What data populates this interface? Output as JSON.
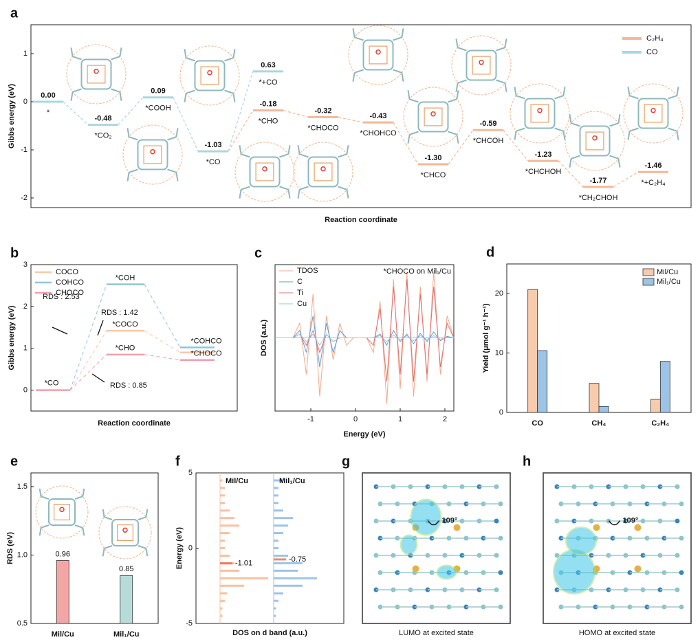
{
  "chart_data": [
    {
      "type": "energy",
      "panel": "a",
      "ylabel": "Gibbs energy (eV)",
      "xlabel": "Reaction coordinate",
      "ylim": [
        -2.2,
        1.6
      ],
      "yticks": [
        -2,
        -1,
        0,
        1
      ],
      "series": [
        {
          "name": "CO",
          "color": "#a8d8dc",
          "labels": [
            "*",
            "*CO₂",
            "*COOH",
            "*CO",
            "*+CO"
          ],
          "values": [
            0,
            -0.48,
            0.09,
            -1.03,
            0.63
          ],
          "value_labels": [
            "0.00",
            "-0.48",
            "0.09",
            "-1.03",
            "0.63"
          ]
        },
        {
          "name": "C₂H₄",
          "color": "#f5b896",
          "labels": [
            "*CHO",
            "*CHOCO",
            "*CHOHCO",
            "*CHCO",
            "*CHCOH",
            "*CHCHOH",
            "*CH₂CHOH",
            "*+C₂H₄"
          ],
          "values": [
            -0.18,
            -0.32,
            -0.43,
            -1.3,
            -0.59,
            -1.23,
            -1.77,
            -1.46
          ],
          "value_labels": [
            "-0.18",
            "-0.32",
            "-0.43",
            "-1.30",
            "-0.59",
            "-1.23",
            "-1.77",
            "-1.46"
          ]
        }
      ]
    },
    {
      "type": "energy-branch",
      "panel": "b",
      "ylabel": "Gibbs energy (eV)",
      "xlabel": "Reaction coordinate",
      "ylim": [
        -0.5,
        3
      ],
      "yticks": [
        0,
        1,
        2,
        3
      ],
      "start": {
        "label": "*CO",
        "value": 0
      },
      "series": [
        {
          "name": "COCO",
          "color": "#f8c9a8",
          "labels": [
            "*COCO",
            null
          ],
          "values": [
            1.42,
            0.9
          ]
        },
        {
          "name": "COHCO",
          "color": "#8fc4dc",
          "labels": [
            "*COH",
            "*COHCO"
          ],
          "values": [
            2.53,
            1.02
          ]
        },
        {
          "name": "CHOCO",
          "color": "#ef9fa8",
          "labels": [
            "*CHO",
            "*CHOCO"
          ],
          "values": [
            0.85,
            0.72
          ]
        }
      ],
      "annotations": [
        "RDS : 2.53",
        "RDS : 1.42",
        "RDS : 0.85"
      ]
    },
    {
      "type": "line",
      "panel": "c",
      "ylabel": "DOS (a.u.)",
      "xlabel": "Energy (eV)",
      "annotation": "*CHOCO on Mil₁/Cu",
      "xlim": [
        -1.8,
        2.2
      ],
      "xticks": [
        -1,
        0,
        1,
        2
      ],
      "ylim": [
        -1,
        1
      ],
      "x": [
        -1.4,
        -1.25,
        -1.1,
        -0.95,
        -0.8,
        -0.65,
        -0.5,
        -0.35,
        -0.2,
        -0.05,
        0.1,
        0.25,
        0.4,
        0.55,
        0.7,
        0.85,
        1.0,
        1.15,
        1.3,
        1.45,
        1.6,
        1.75,
        1.9,
        2.05,
        2.2
      ],
      "series": [
        {
          "name": "TDOS",
          "color": "#f4a98a",
          "values": [
            0,
            0.2,
            -0.5,
            0.6,
            -0.8,
            0.3,
            -0.3,
            0.2,
            -0.1,
            0,
            0,
            0,
            -0.2,
            0.5,
            -0.9,
            0.8,
            -0.7,
            0.9,
            -0.8,
            0.7,
            -0.6,
            0.9,
            -0.5,
            0.3,
            0
          ]
        },
        {
          "name": "C",
          "color": "#5b9bd5",
          "values": [
            0,
            0.1,
            -0.2,
            0.3,
            -0.4,
            0.2,
            -0.2,
            0.1,
            0,
            0,
            0,
            0,
            0,
            0.05,
            -0.1,
            0.1,
            -0.05,
            0.05,
            -0.08,
            0.06,
            -0.05,
            0.08,
            -0.04,
            0.02,
            0
          ]
        },
        {
          "name": "Ti",
          "color": "#e07070",
          "values": [
            0,
            0.05,
            -0.1,
            0.1,
            -0.2,
            0.05,
            -0.05,
            0,
            0,
            0,
            0,
            0,
            -0.1,
            0.4,
            -0.6,
            0.7,
            -0.5,
            0.8,
            -0.6,
            0.6,
            -0.5,
            0.7,
            -0.4,
            0.2,
            0
          ]
        },
        {
          "name": "Cu",
          "color": "#9dc3e6",
          "values": [
            0,
            0.05,
            -0.05,
            0.05,
            -0.1,
            0.05,
            -0.05,
            0,
            0,
            0,
            0,
            0,
            0,
            0.03,
            -0.05,
            0.04,
            -0.03,
            0.03,
            -0.04,
            0.03,
            -0.02,
            0.03,
            -0.02,
            0.01,
            0
          ]
        }
      ]
    },
    {
      "type": "bar",
      "panel": "d",
      "ylabel": "Yield (μmol g⁻¹ h⁻¹)",
      "ylim": [
        0,
        25
      ],
      "yticks": [
        0,
        10,
        20
      ],
      "categories": [
        "CO",
        "CH₄",
        "C₂H₄"
      ],
      "series": [
        {
          "name": "Mil/Cu",
          "color": "#f8cbad",
          "values": [
            20.7,
            4.9,
            2.2
          ]
        },
        {
          "name": "Mil₁/Cu",
          "color": "#9dc3e6",
          "values": [
            10.4,
            1.0,
            8.6
          ]
        }
      ]
    },
    {
      "type": "bar",
      "panel": "e",
      "ylabel": "RDS (eV)",
      "ylim": [
        0.5,
        1.6
      ],
      "yticks": [
        0.5,
        {
          "value": 1,
          "label": "1.0"
        },
        1.5
      ],
      "categories": [
        "Mil/Cu",
        "Mil₁/Cu"
      ],
      "values": [
        0.96,
        0.85
      ],
      "colors": [
        "#f4a6a6",
        "#b7dcd8"
      ]
    },
    {
      "type": "dos",
      "panel": "f",
      "ylabel": "Energy (eV)",
      "xlabel": "DOS on d band (a.u.)",
      "ylim": [
        -5,
        5
      ],
      "yticks": [
        -5,
        0,
        5
      ],
      "y": [
        -4.5,
        -4,
        -3.5,
        -3,
        -2.5,
        -2,
        -1.5,
        -1,
        -0.5,
        0,
        0.5,
        1,
        1.5,
        2,
        2.5,
        3,
        3.5,
        4,
        4.5
      ],
      "series": [
        {
          "name": "Mil/Cu",
          "color": "#f8c0a0",
          "center_color": "#ee7a5a",
          "center": -1.01,
          "values": [
            0.05,
            0.05,
            0.1,
            0.15,
            0.5,
            1.0,
            0.4,
            0.3,
            0.2,
            0.1,
            0.1,
            0.2,
            0.4,
            0.3,
            0.2,
            0.1,
            0.1,
            0.1,
            0.05
          ]
        },
        {
          "name": "Mil₁/Cu",
          "color": "#9dc3e6",
          "center_color": "#ee8a6a",
          "center": -0.75,
          "values": [
            0.05,
            0.05,
            0.1,
            0.2,
            0.6,
            0.9,
            0.5,
            0.6,
            0.3,
            0.1,
            0.1,
            0.2,
            0.3,
            0.4,
            0.2,
            0.1,
            0.1,
            0.1,
            0.2
          ]
        }
      ]
    },
    {
      "type": "image",
      "panel": "g",
      "annotation": "109°",
      "caption": "LUMO at excited state"
    },
    {
      "type": "image",
      "panel": "h",
      "annotation": "109°",
      "caption": "HOMO at excited state"
    }
  ]
}
